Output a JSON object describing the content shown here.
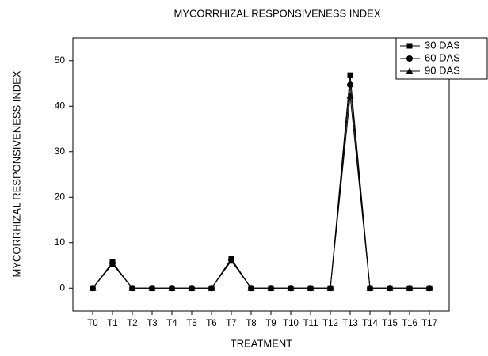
{
  "chart_data": {
    "type": "line",
    "title": "MYCORRHIZAL RESPONSIVENESS INDEX",
    "x_label": "TREATMENT",
    "y_label": "MYCORRHIZAL RESPONSIVENESS INDEX",
    "categories": [
      "T0",
      "T1",
      "T2",
      "T3",
      "T4",
      "T5",
      "T6",
      "T7",
      "T8",
      "T9",
      "T10",
      "T11",
      "T12",
      "T13",
      "T14",
      "T15",
      "T16",
      "T17"
    ],
    "series": [
      {
        "name": "30 DAS",
        "color": "#000000",
        "marker": "square",
        "values": [
          0,
          5.7,
          0,
          0,
          0,
          0,
          0,
          6.5,
          0,
          0,
          0,
          0,
          0,
          46.8,
          0,
          0,
          0,
          0
        ]
      },
      {
        "name": "60 DAS",
        "color": "#000000",
        "marker": "circle",
        "values": [
          0,
          5.5,
          0,
          0,
          0,
          0,
          0,
          6.2,
          0,
          0,
          0,
          0,
          0,
          44.7,
          0,
          0,
          0,
          0
        ]
      },
      {
        "name": "90 DAS",
        "color": "#000000",
        "marker": "triangle",
        "values": [
          0,
          5.3,
          0,
          0,
          0,
          0,
          0,
          6.0,
          0,
          0,
          0,
          0,
          0,
          42.3,
          0,
          0,
          0,
          0
        ]
      }
    ],
    "ylim": [
      -5,
      55
    ],
    "yticks": [
      0,
      10,
      20,
      30,
      40,
      50
    ],
    "legend": "top-right"
  }
}
